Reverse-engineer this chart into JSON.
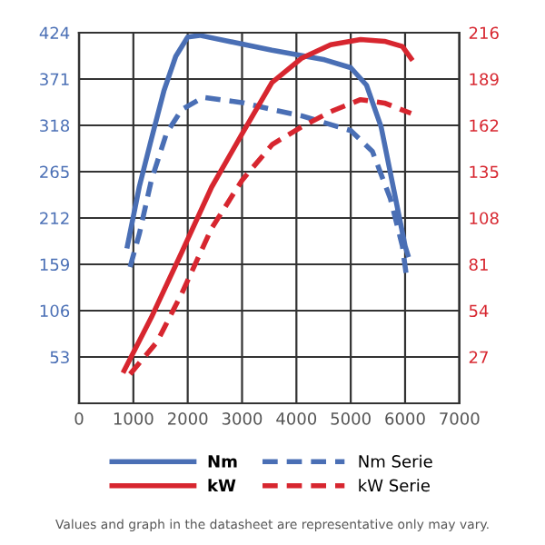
{
  "chart_data": {
    "type": "line",
    "xlim": [
      0,
      7000
    ],
    "xticks": [
      0,
      1000,
      2000,
      3000,
      4000,
      5000,
      6000,
      7000
    ],
    "ylim": [
      0,
      424
    ],
    "yticks": [
      {
        "value": 0,
        "label": null
      },
      53,
      106,
      159,
      212,
      265,
      318,
      371,
      424
    ],
    "y2lim": [
      0,
      216
    ],
    "y2ticks": [
      27,
      54,
      81,
      108,
      135,
      162,
      189,
      216
    ],
    "grid": true,
    "legend": "bottom",
    "marker": "none",
    "series": [
      {
        "name": "Nm",
        "color": "#4a6fb5",
        "line_style": "solid",
        "x": [
          890,
          1110,
          1330,
          1560,
          1780,
          2000,
          2220,
          3550,
          4520,
          5000,
          5290,
          5560,
          5780,
          6000,
          6050
        ],
        "values": [
          180,
          248,
          302,
          357,
          397,
          419,
          421,
          404,
          393,
          384,
          364,
          316,
          248,
          180,
          170
        ]
      },
      {
        "name": "Nm Serie",
        "color": "#4a6fb5",
        "line_style": "dashed",
        "x": [
          940,
          1110,
          1330,
          1610,
          1890,
          2280,
          3000,
          3560,
          4090,
          5000,
          5400,
          5730,
          5950,
          6030
        ],
        "values": [
          156,
          194,
          255,
          309,
          336,
          350,
          344,
          336,
          329,
          312,
          288,
          234,
          180,
          143
        ]
      },
      {
        "name": "kW",
        "color": "#d7262f",
        "line_style": "solid",
        "axis": "y2",
        "x": [
          830,
          1330,
          1890,
          2440,
          3000,
          3550,
          4090,
          4630,
          5180,
          5620,
          5950,
          6110
        ],
        "values": [
          19,
          50,
          88,
          126,
          157,
          187,
          201,
          209,
          212,
          211,
          208,
          201
        ]
      },
      {
        "name": "kW Serie",
        "color": "#d7262f",
        "line_style": "dashed",
        "axis": "y2",
        "x": [
          940,
          1440,
          1890,
          2440,
          3000,
          3560,
          4090,
          4630,
          5180,
          5620,
          6110
        ],
        "values": [
          17,
          36,
          64,
          102,
          130,
          151,
          161,
          170,
          177,
          175,
          169
        ]
      }
    ],
    "annotations": [
      "Values and graph in the datasheet are representative only may vary."
    ]
  }
}
